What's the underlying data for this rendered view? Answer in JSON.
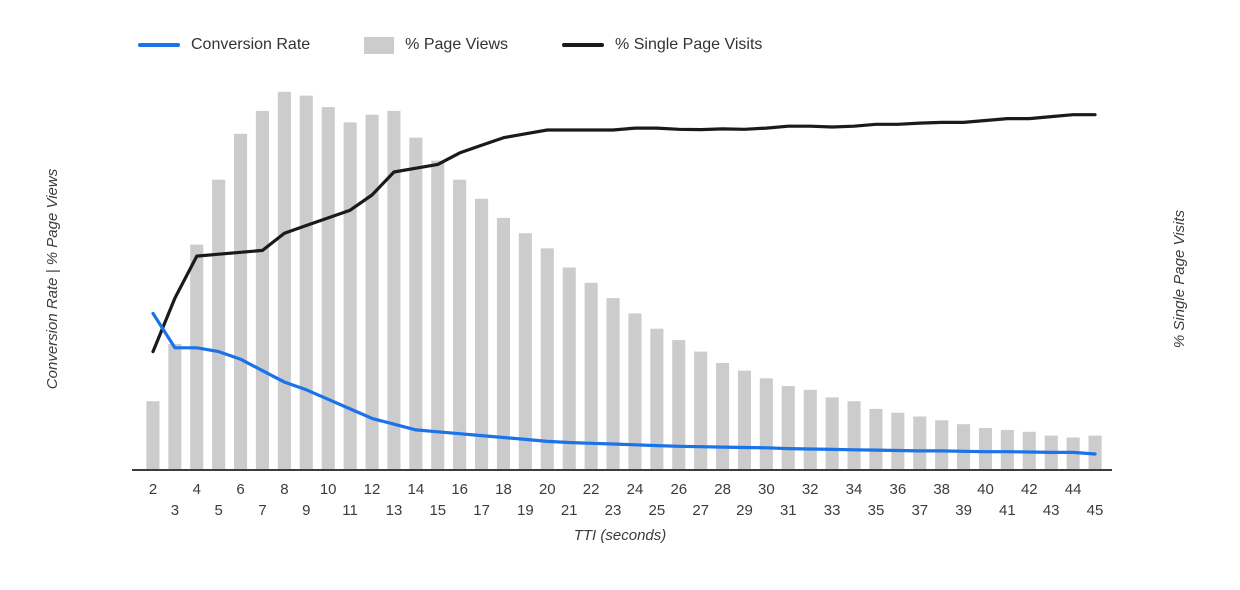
{
  "chart_data": {
    "type": "combo",
    "title": "",
    "xlabel": "TTI (seconds)",
    "ylabel_left": "Conversion Rate | % Page Views",
    "ylabel_right": "% Single Page Visits",
    "x": [
      2,
      3,
      4,
      5,
      6,
      7,
      8,
      9,
      10,
      11,
      12,
      13,
      14,
      15,
      16,
      17,
      18,
      19,
      20,
      21,
      22,
      23,
      24,
      25,
      26,
      27,
      28,
      29,
      30,
      31,
      32,
      33,
      34,
      35,
      36,
      37,
      38,
      39,
      40,
      41,
      42,
      43,
      44,
      45
    ],
    "x_tick_layout": "staggered two rows (even values top row, odd values bottom row)",
    "y_axis_tick_labels": "none shown",
    "units": "relative height 0-100 (chart displays no numeric y-axis ticks)",
    "grid": false,
    "legend_position": "top",
    "series": [
      {
        "name": "Conversion Rate",
        "type": "line",
        "axis": "left",
        "color": "#1a73e8",
        "values": [
          41,
          32,
          32,
          31,
          29,
          26,
          23,
          21,
          18.5,
          16,
          13.5,
          12,
          10.5,
          10,
          9.5,
          9,
          8.5,
          8,
          7.5,
          7.2,
          7,
          6.8,
          6.6,
          6.4,
          6.2,
          6.1,
          6,
          5.9,
          5.8,
          5.6,
          5.5,
          5.4,
          5.3,
          5.2,
          5.1,
          5,
          5,
          4.9,
          4.8,
          4.8,
          4.7,
          4.6,
          4.6,
          4.2
        ]
      },
      {
        "name": "% Page Views",
        "type": "bar",
        "axis": "left",
        "color": "#cccccc",
        "values": [
          18,
          33,
          59,
          76,
          88,
          94,
          99,
          98,
          95,
          91,
          93,
          94,
          87,
          81,
          76,
          71,
          66,
          62,
          58,
          53,
          49,
          45,
          41,
          37,
          34,
          31,
          28,
          26,
          24,
          22,
          21,
          19,
          18,
          16,
          15,
          14,
          13,
          12,
          11,
          10.5,
          10,
          9,
          8.5,
          9
        ]
      },
      {
        "name": "% Single Page Visits",
        "type": "line",
        "axis": "right",
        "color": "#1a1a1a",
        "values": [
          31,
          45,
          56,
          56.5,
          57,
          57.5,
          62,
          64,
          66,
          68,
          72,
          78,
          79,
          80,
          83,
          85,
          87,
          88,
          89,
          89,
          89,
          89,
          89.5,
          89.5,
          89.2,
          89.1,
          89.3,
          89.2,
          89.5,
          90,
          90,
          89.8,
          90,
          90.5,
          90.5,
          90.8,
          91,
          91,
          91.5,
          92,
          92,
          92.5,
          93,
          93
        ]
      }
    ]
  }
}
